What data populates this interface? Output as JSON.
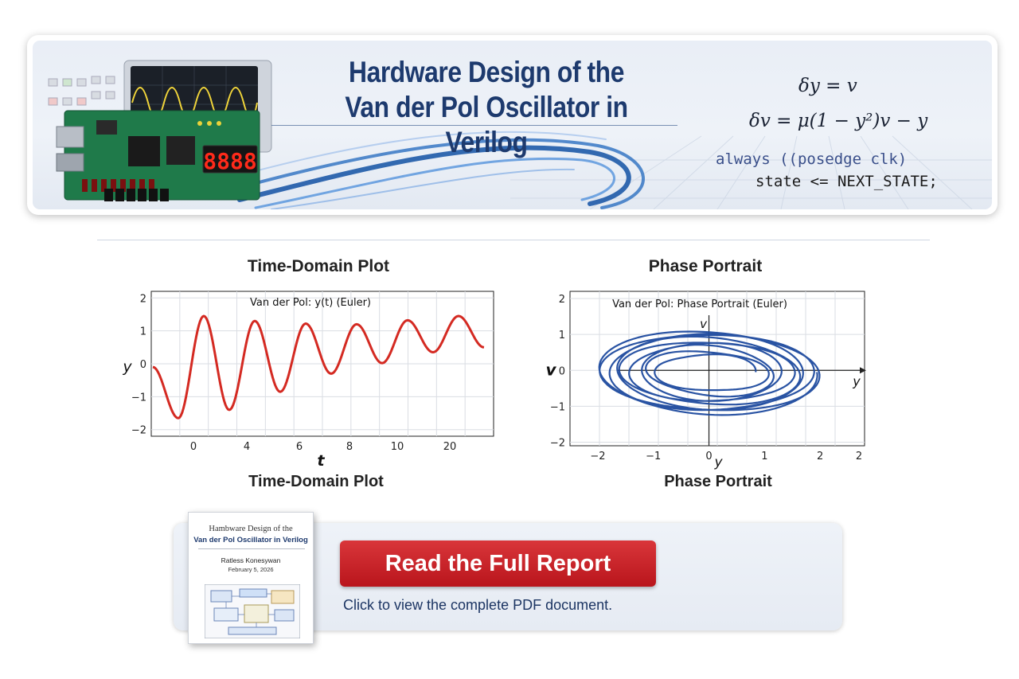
{
  "banner": {
    "title_line1": "Hardware Design of the",
    "title_line2": "Van der Pol Oscillator in Verilog",
    "equation1": "δy = v",
    "equation2": "δv = μ(1 − y²)v − y",
    "code_line1": "always ((posedge clk)",
    "code_line2": "state <= NEXT_STATE;",
    "seven_segment_display": "8888"
  },
  "colors": {
    "title_blue": "#1d3a6e",
    "time_series_red": "#d42a22",
    "phase_blue": "#1e4a9e",
    "cta_red": "#c8232a"
  },
  "time_plot": {
    "heading": "Time-Domain Plot",
    "caption": "Time-Domain Plot"
  },
  "phase_plot": {
    "heading": "Phase Portrait",
    "caption": "Phase Portrait"
  },
  "chart_data": [
    {
      "type": "line",
      "title": "Van der Pol: y(t) (Euler)",
      "xlabel": "t",
      "ylabel": "y",
      "x_ticks": [
        "0",
        "4",
        "4",
        "6",
        "8",
        "10",
        "20"
      ],
      "y_ticks": [
        "2",
        "1",
        "0",
        "−1",
        "−2"
      ],
      "ylim": [
        -2.2,
        2.2
      ],
      "grid": true,
      "series": [
        {
          "peaks_and_troughs": [
            -0.1,
            -1.65,
            1.45,
            -1.4,
            1.3,
            -0.85,
            1.22,
            -0.3,
            1.2,
            0.02,
            1.32,
            0.35,
            1.45,
            0.5
          ]
        }
      ]
    },
    {
      "type": "line",
      "title": "Van der Pol: Phase Portrait (Euler)",
      "xlabel": "y",
      "ylabel": "v",
      "axis_label_x": "y",
      "axis_label_y": "v",
      "x_ticks": [
        "−2",
        "−1",
        "0",
        "1",
        "2",
        "2"
      ],
      "y_ticks": [
        "2",
        "1",
        "0",
        "−1",
        "−2"
      ],
      "xlim": [
        -2.5,
        2.8
      ],
      "ylim": [
        -2.1,
        2.2
      ],
      "grid": true,
      "trajectory": "spiral converging to limit cycle",
      "outer_radius_y": 2.0,
      "outer_radius_v": 1.6
    }
  ],
  "cta": {
    "button_label": "Read the Full Report",
    "caption": "Click to view the complete PDF document."
  },
  "report_thumbnail": {
    "title_line1": "Hambware Design of the",
    "title_line2": "Van der Pol Oscillator in Verilog",
    "author": "Ratless Konesywan",
    "date": "February 5, 2026"
  }
}
